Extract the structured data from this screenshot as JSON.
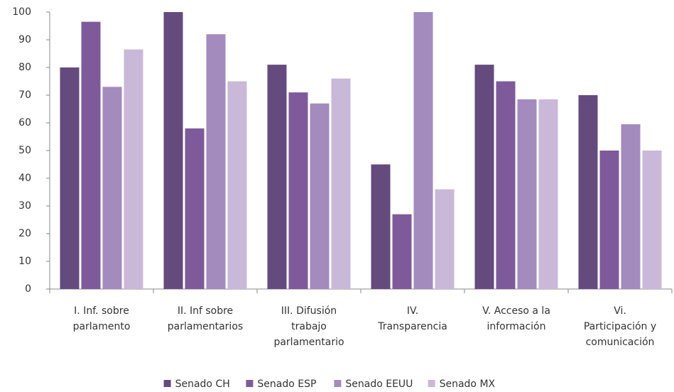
{
  "chart_data": {
    "type": "bar",
    "categories": [
      "I. Inf. sobre\nparlamento",
      "II. Inf sobre\nparlamentarios",
      "III. Difusión\ntrabajo\nparlamentario",
      "IV.\nTransparencia",
      "V. Acceso a la\ninformación",
      "Vi.\nParticipación y\ncomunicación"
    ],
    "series": [
      {
        "name": "Senado CH",
        "color": "#654a7e",
        "values": [
          80,
          100,
          81,
          45,
          81,
          70
        ]
      },
      {
        "name": "Senado ESP",
        "color": "#7e5a9b",
        "values": [
          96.5,
          58,
          71,
          27,
          75,
          50
        ]
      },
      {
        "name": "Senado EEUU",
        "color": "#a38bbd",
        "values": [
          73,
          92,
          67,
          100,
          68.5,
          59.5
        ]
      },
      {
        "name": "Senado MX",
        "color": "#c9b8d7",
        "values": [
          86.5,
          75,
          76,
          36,
          68.5,
          50
        ]
      }
    ],
    "ylim": [
      0,
      100
    ],
    "yticks": [
      0,
      10,
      20,
      30,
      40,
      50,
      60,
      70,
      80,
      90,
      100
    ],
    "grid": false,
    "legend": "bottom"
  }
}
